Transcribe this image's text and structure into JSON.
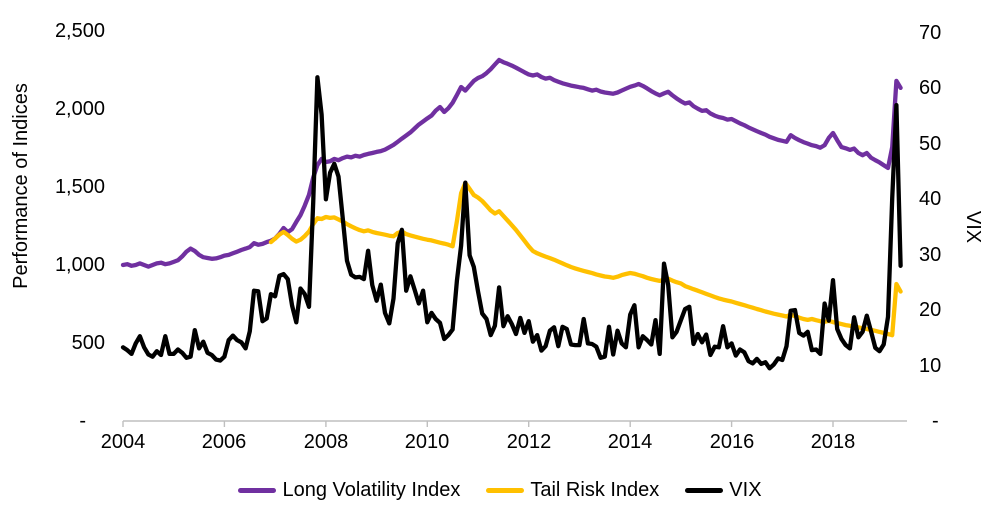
{
  "chart_data": {
    "type": "line",
    "title": "",
    "legend_position": "bottom",
    "grid": false,
    "background": "#ffffff",
    "axis_color": "#bfbfbf",
    "text_color": "#000000",
    "left_axis": {
      "label": "Performance of Indices",
      "range": [
        0,
        2500
      ],
      "tick_values": [
        2500,
        2000,
        1500,
        1000,
        500,
        0
      ],
      "tick_labels": [
        "2,500",
        "2,000",
        "1,500",
        "1,000",
        "500",
        "-"
      ]
    },
    "right_axis": {
      "label": "VIX",
      "range": [
        0,
        70
      ],
      "tick_values": [
        70,
        60,
        50,
        40,
        30,
        20,
        10,
        0
      ],
      "tick_labels": [
        "70",
        "60",
        "50",
        "40",
        "30",
        "20",
        "10",
        "-"
      ]
    },
    "x_axis": {
      "tick_labels": [
        "2004",
        "2006",
        "2008",
        "2010",
        "2012",
        "2014",
        "2016",
        "2018"
      ],
      "start_period": "Dec 2004",
      "end_period": "Apr 2020",
      "periods_per_tick": 24,
      "unit": "month"
    },
    "series": [
      {
        "name": "Long Volatility Index",
        "color": "#7030a0",
        "axis": "left",
        "start_month": 0,
        "values": [
          1000,
          1005,
          995,
          1000,
          1010,
          1000,
          990,
          1000,
          1010,
          1015,
          1005,
          1010,
          1020,
          1030,
          1055,
          1085,
          1105,
          1090,
          1065,
          1050,
          1045,
          1040,
          1042,
          1050,
          1060,
          1065,
          1075,
          1085,
          1096,
          1105,
          1115,
          1140,
          1130,
          1135,
          1147,
          1155,
          1170,
          1200,
          1237,
          1211,
          1230,
          1276,
          1320,
          1380,
          1450,
          1560,
          1640,
          1680,
          1660,
          1665,
          1680,
          1672,
          1685,
          1695,
          1690,
          1700,
          1695,
          1705,
          1712,
          1718,
          1725,
          1730,
          1740,
          1755,
          1770,
          1790,
          1810,
          1830,
          1850,
          1875,
          1900,
          1920,
          1940,
          1958,
          1990,
          2013,
          1981,
          2005,
          2040,
          2090,
          2141,
          2118,
          2150,
          2180,
          2199,
          2210,
          2230,
          2255,
          2285,
          2314,
          2300,
          2290,
          2278,
          2265,
          2250,
          2235,
          2222,
          2215,
          2222,
          2205,
          2195,
          2200,
          2185,
          2175,
          2165,
          2158,
          2150,
          2145,
          2140,
          2135,
          2126,
          2118,
          2124,
          2112,
          2106,
          2102,
          2098,
          2106,
          2118,
          2130,
          2142,
          2150,
          2160,
          2148,
          2132,
          2115,
          2100,
          2088,
          2100,
          2110,
          2088,
          2068,
          2050,
          2035,
          2042,
          2018,
          2002,
          1988,
          1992,
          1972,
          1958,
          1948,
          1942,
          1932,
          1936,
          1922,
          1908,
          1896,
          1882,
          1870,
          1858,
          1846,
          1836,
          1822,
          1812,
          1802,
          1796,
          1790,
          1832,
          1814,
          1800,
          1788,
          1778,
          1768,
          1762,
          1752,
          1768,
          1815,
          1846,
          1800,
          1756,
          1748,
          1738,
          1746,
          1718,
          1704,
          1718,
          1688,
          1672,
          1658,
          1640,
          1622,
          1755,
          2180,
          2135
        ]
      },
      {
        "name": "Tail Risk Index",
        "color": "#ffc000",
        "axis": "left",
        "start_month": 35,
        "values": [
          1147,
          1170,
          1195,
          1212,
          1192,
          1168,
          1150,
          1162,
          1185,
          1215,
          1262,
          1300,
          1295,
          1308,
          1302,
          1305,
          1292,
          1278,
          1262,
          1248,
          1235,
          1224,
          1216,
          1222,
          1212,
          1205,
          1200,
          1194,
          1188,
          1184,
          1205,
          1215,
          1198,
          1190,
          1182,
          1175,
          1168,
          1162,
          1158,
          1150,
          1143,
          1137,
          1130,
          1120,
          1280,
          1460,
          1526,
          1488,
          1449,
          1432,
          1410,
          1380,
          1350,
          1330,
          1345,
          1315,
          1285,
          1255,
          1225,
          1190,
          1155,
          1120,
          1090,
          1075,
          1064,
          1054,
          1044,
          1034,
          1022,
          1010,
          998,
          987,
          978,
          970,
          962,
          955,
          948,
          940,
          933,
          926,
          923,
          918,
          925,
          935,
          942,
          949,
          944,
          936,
          928,
          918,
          910,
          904,
          898,
          906,
          912,
          900,
          890,
          882,
          865,
          855,
          845,
          835,
          825,
          815,
          805,
          795,
          786,
          778,
          772,
          766,
          758,
          750,
          742,
          734,
          726,
          718,
          710,
          702,
          695,
          688,
          682,
          676,
          670,
          682,
          672,
          662,
          654,
          648,
          654,
          646,
          640,
          636,
          642,
          634,
          628,
          621,
          615,
          610,
          605,
          600,
          595,
          590,
          584,
          578,
          571,
          565,
          558,
          550,
          878,
          830
        ]
      },
      {
        "name": "VIX",
        "color": "#000000",
        "axis": "right",
        "start_month": 0,
        "values": [
          13.3,
          12.8,
          12.1,
          14.0,
          15.3,
          13.3,
          12.0,
          11.6,
          12.6,
          11.9,
          15.3,
          12.1,
          12.1,
          12.9,
          12.3,
          11.4,
          11.6,
          16.4,
          13.1,
          14.3,
          12.3,
          11.9,
          11.1,
          10.9,
          11.6,
          14.6,
          15.4,
          14.6,
          14.2,
          13.1,
          16.2,
          23.5,
          23.4,
          18.0,
          18.5,
          22.9,
          22.5,
          26.2,
          26.5,
          25.6,
          20.8,
          17.8,
          23.9,
          22.9,
          20.6,
          39.4,
          62.0,
          55.3,
          40.0,
          44.8,
          46.4,
          44.1,
          36.5,
          28.9,
          26.4,
          25.9,
          26.0,
          25.6,
          30.7,
          24.5,
          21.7,
          24.6,
          19.5,
          17.6,
          22.1,
          32.1,
          34.5,
          23.5,
          26.1,
          23.7,
          21.2,
          23.5,
          17.8,
          19.5,
          18.4,
          17.7,
          14.8,
          15.5,
          16.5,
          25.3,
          31.6,
          43.0,
          29.9,
          27.8,
          23.4,
          19.4,
          18.4,
          15.5,
          17.2,
          24.1,
          17.1,
          18.9,
          17.5,
          15.7,
          18.6,
          15.9,
          18.0,
          14.3,
          15.5,
          12.7,
          13.5,
          16.3,
          16.9,
          13.5,
          17.0,
          16.6,
          13.8,
          13.7,
          13.7,
          18.4,
          14.0,
          13.9,
          13.4,
          11.4,
          11.6,
          17.0,
          12.0,
          16.3,
          14.0,
          13.3,
          19.2,
          20.9,
          13.3,
          15.3,
          14.6,
          13.8,
          18.2,
          12.1,
          28.4,
          24.5,
          15.1,
          16.1,
          18.2,
          20.2,
          20.6,
          13.9,
          15.7,
          14.2,
          15.6,
          11.9,
          13.4,
          13.3,
          17.1,
          13.3,
          14.0,
          11.8,
          12.9,
          12.4,
          10.8,
          10.4,
          11.2,
          10.3,
          10.6,
          9.5,
          10.2,
          11.3,
          11.0,
          13.5,
          19.9,
          20.0,
          15.9,
          15.4,
          16.1,
          12.8,
          12.9,
          12.1,
          21.2,
          18.1,
          25.4,
          16.6,
          14.8,
          13.7,
          13.1,
          18.7,
          15.1,
          16.1,
          19.0,
          16.2,
          13.2,
          12.6,
          13.8,
          18.8,
          40.1,
          57.0,
          28.0
        ]
      }
    ]
  }
}
